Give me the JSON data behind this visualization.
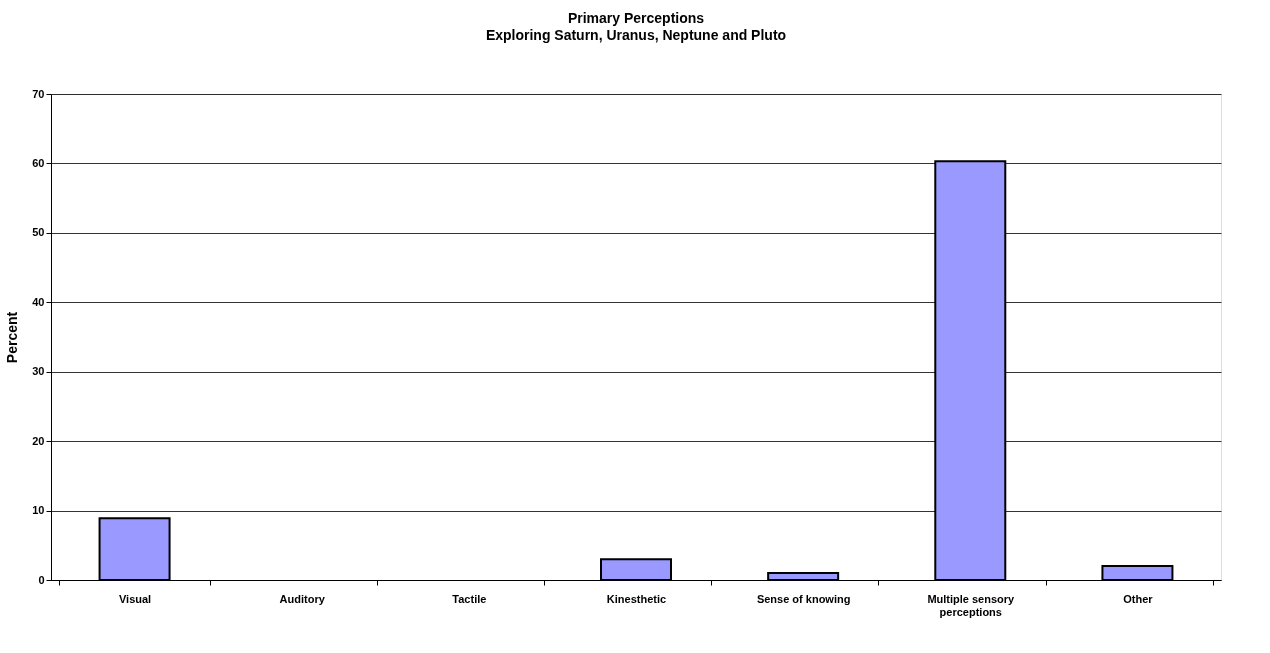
{
  "chart_data": {
    "type": "bar",
    "title": "Primary Perceptions",
    "subtitle": "Exploring Saturn, Uranus, Neptune and Pluto",
    "ylabel": "Percent",
    "categories": [
      "Visual",
      "Auditory",
      "Tactile",
      "Kinesthetic",
      "Sense of knowing",
      "Multiple sensory perceptions",
      "Other"
    ],
    "values": [
      8.9,
      0,
      0,
      3.0,
      1.0,
      60.3,
      2.0
    ],
    "color": "#9999ff",
    "ylim": [
      0,
      70
    ],
    "yticks": [
      0,
      10,
      20,
      30,
      40,
      50,
      60,
      70
    ],
    "grid": "y"
  }
}
